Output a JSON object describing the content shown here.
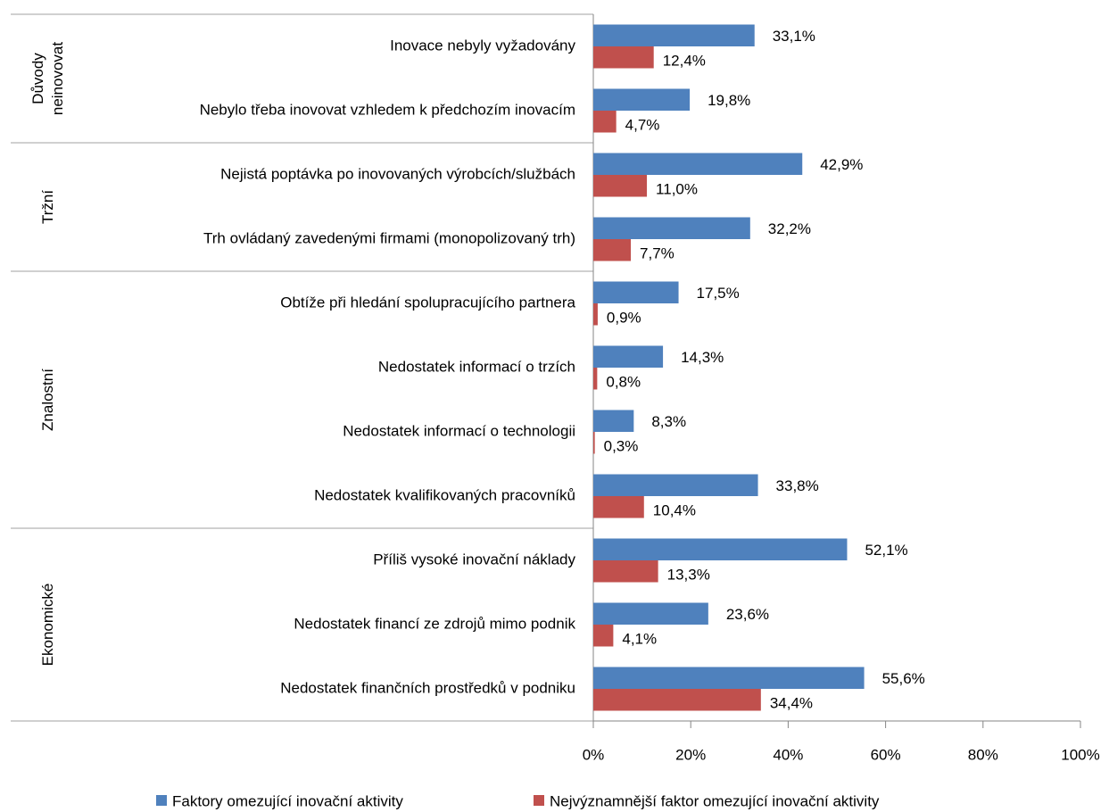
{
  "chart_data": {
    "type": "bar",
    "orientation": "horizontal",
    "categories": [
      "Inovace nebyly vyžadovány",
      "Nebylo třeba inovovat vzhledem k předchozím inovacím",
      "Nejistá poptávka po inovovaných výrobcích/službách",
      "Trh ovládaný zavedenými firmami (monopolizovaný trh)",
      "Obtíže při hledání spolupracujícího partnera",
      "Nedostatek informací o trzích",
      "Nedostatek informací o technologii",
      "Nedostatek kvalifikovaných pracovníků",
      "Příliš vysoké inovační náklady",
      "Nedostatek financí ze zdrojů mimo podnik",
      "Nedostatek finančních prostředků v podniku"
    ],
    "category_groups": [
      "Důvody neinovovat",
      "Důvody neinovovat",
      "Tržní",
      "Tržní",
      "Znalostní",
      "Znalostní",
      "Znalostní",
      "Znalostní",
      "Ekonomické",
      "Ekonomické",
      "Ekonomické"
    ],
    "series": [
      {
        "name": "Faktory omezující inovační aktivity",
        "color": "#4f81bd",
        "values": [
          33.1,
          19.8,
          42.9,
          32.2,
          17.5,
          14.3,
          8.3,
          33.8,
          52.1,
          23.6,
          55.6
        ],
        "value_labels": [
          "33,1%",
          "19,8%",
          "42,9%",
          "32,2%",
          "17,5%",
          "14,3%",
          "8,3%",
          "33,8%",
          "52,1%",
          "23,6%",
          "55,6%"
        ]
      },
      {
        "name": "Nejvýznamnější faktor omezující inovační aktivity",
        "color": "#c0504d",
        "values": [
          12.4,
          4.7,
          11.0,
          7.7,
          0.9,
          0.8,
          0.3,
          10.4,
          13.3,
          4.1,
          34.4
        ],
        "value_labels": [
          "12,4%",
          "4,7%",
          "11,0%",
          "7,7%",
          "0,9%",
          "0,8%",
          "0,3%",
          "10,4%",
          "13,3%",
          "4,1%",
          "34,4%"
        ]
      }
    ],
    "xlim": [
      0,
      100
    ],
    "xticks": [
      {
        "value": 0,
        "label": "0%"
      },
      {
        "value": 20,
        "label": "20%"
      },
      {
        "value": 40,
        "label": "40%"
      },
      {
        "value": 60,
        "label": "60%"
      },
      {
        "value": 80,
        "label": "80%"
      },
      {
        "value": 100,
        "label": "100%"
      }
    ],
    "legend": "bottom"
  }
}
